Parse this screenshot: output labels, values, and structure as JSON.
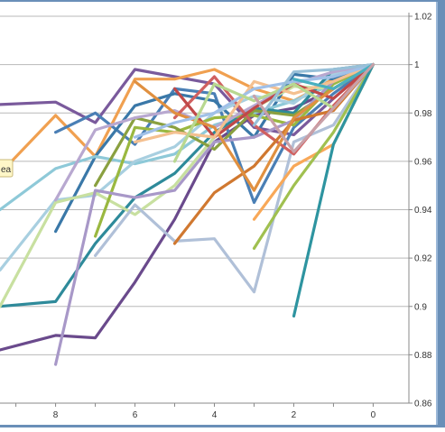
{
  "chart_data": {
    "type": "line",
    "title": "",
    "xlabel": "",
    "ylabel": "",
    "x_reversed": true,
    "xlim": [
      -0.9,
      9.4
    ],
    "ylim": [
      0.86,
      1.02
    ],
    "x_ticks": [
      8,
      6,
      4,
      2,
      0
    ],
    "x_tick_labels": [
      "8",
      "6",
      "4",
      "2",
      "0"
    ],
    "y_ticks": [
      0.86,
      0.88,
      0.9,
      0.92,
      0.94,
      0.96,
      0.98,
      1,
      1.02
    ],
    "y_tick_labels": [
      "0.86",
      "0.88",
      "0.9",
      "0.92",
      "0.94",
      "0.96",
      "0.98",
      "1",
      "1.02"
    ],
    "grid": "horizontal",
    "legend": "none",
    "tooltip_fragment": "ea",
    "series": [
      {
        "color": "#7a5a9c",
        "x": [
          9.4,
          8,
          7,
          6,
          5,
          4,
          3,
          2,
          1,
          0
        ],
        "y": [
          0.9835,
          0.9845,
          0.976,
          0.998,
          0.995,
          0.992,
          0.974,
          0.971,
          0.986,
          1.0
        ]
      },
      {
        "color": "#6a4a8c",
        "x": [
          9.4,
          8,
          7,
          6,
          5,
          4,
          3,
          2,
          1,
          0
        ],
        "y": [
          0.882,
          0.888,
          0.887,
          0.91,
          0.936,
          0.968,
          0.979,
          0.982,
          0.99,
          1.0
        ]
      },
      {
        "color": "#f0a050",
        "x": [
          9.4,
          8,
          7,
          6,
          5,
          4,
          3,
          2,
          1,
          0
        ],
        "y": [
          0.955,
          0.979,
          0.962,
          0.994,
          0.994,
          0.998,
          0.99,
          0.985,
          0.994,
          1.0
        ]
      },
      {
        "color": "#4a7fb5",
        "x": [
          8,
          7,
          6,
          5,
          4,
          3,
          2,
          1,
          0
        ],
        "y": [
          0.972,
          0.98,
          0.967,
          0.99,
          0.988,
          0.943,
          0.974,
          0.988,
          1.0
        ]
      },
      {
        "color": "#3a78a8",
        "x": [
          8,
          7,
          6,
          5,
          4,
          3,
          2,
          1,
          0
        ],
        "y": [
          0.931,
          0.962,
          0.983,
          0.988,
          0.985,
          0.97,
          0.996,
          0.994,
          1.0
        ]
      },
      {
        "color": "#8ec9d8",
        "x": [
          9.4,
          8,
          7,
          6,
          5,
          4,
          3,
          2,
          1,
          0
        ],
        "y": [
          0.94,
          0.957,
          0.962,
          0.959,
          0.963,
          0.975,
          0.98,
          0.985,
          0.992,
          1.0
        ]
      },
      {
        "color": "#a8cfe0",
        "x": [
          9.4,
          8,
          7,
          6,
          5,
          4,
          3,
          2,
          1,
          0
        ],
        "y": [
          0.915,
          0.944,
          0.946,
          0.96,
          0.966,
          0.98,
          0.987,
          0.984,
          0.996,
          1.0
        ]
      },
      {
        "color": "#2e8a9a",
        "x": [
          9.4,
          8,
          7,
          6,
          5,
          4,
          3,
          2,
          1,
          0
        ],
        "y": [
          0.9,
          0.902,
          0.926,
          0.945,
          0.955,
          0.972,
          0.982,
          0.98,
          0.998,
          1.0
        ]
      },
      {
        "color": "#c8e0a0",
        "x": [
          9.4,
          8,
          7,
          6,
          5,
          4,
          3,
          2,
          1,
          0
        ],
        "y": [
          0.9,
          0.943,
          0.947,
          0.938,
          0.95,
          0.97,
          0.982,
          0.991,
          0.99,
          1.0
        ]
      },
      {
        "color": "#9ab840",
        "x": [
          7,
          6,
          5,
          4,
          3,
          2,
          1,
          0
        ],
        "y": [
          0.929,
          0.974,
          0.972,
          0.978,
          0.979,
          0.975,
          0.992,
          1.0
        ]
      },
      {
        "color": "#8aa040",
        "x": [
          7,
          6,
          5,
          4,
          3,
          2,
          1,
          0
        ],
        "y": [
          0.95,
          0.978,
          0.974,
          0.965,
          0.981,
          0.979,
          0.99,
          1.0
        ]
      },
      {
        "color": "#a898c8",
        "x": [
          8,
          7,
          6,
          5,
          4,
          3,
          2,
          1,
          0
        ],
        "y": [
          0.876,
          0.948,
          0.945,
          0.948,
          0.968,
          0.97,
          0.977,
          0.993,
          1.0
        ]
      },
      {
        "color": "#b8a8d0",
        "x": [
          8,
          7,
          6,
          5,
          4,
          3,
          2,
          1,
          0
        ],
        "y": [
          0.944,
          0.973,
          0.978,
          0.981,
          0.974,
          0.983,
          0.992,
          0.997,
          1.0
        ]
      },
      {
        "color": "#b0c0d8",
        "x": [
          7,
          6,
          5,
          4,
          3,
          2,
          1,
          0
        ],
        "y": [
          0.921,
          0.942,
          0.927,
          0.928,
          0.906,
          0.968,
          0.975,
          1.0
        ]
      },
      {
        "color": "#d06060",
        "x": [
          5,
          4,
          3,
          2,
          1,
          0
        ],
        "y": [
          0.978,
          0.995,
          0.975,
          0.963,
          0.983,
          1.0
        ]
      },
      {
        "color": "#c04848",
        "x": [
          5,
          4,
          3,
          2,
          1,
          0
        ],
        "y": [
          0.99,
          0.97,
          0.982,
          0.992,
          0.986,
          1.0
        ]
      },
      {
        "color": "#d07830",
        "x": [
          5,
          4,
          3,
          2,
          1,
          0
        ],
        "y": [
          0.926,
          0.947,
          0.958,
          0.977,
          0.981,
          1.0
        ]
      },
      {
        "color": "#e09040",
        "x": [
          6,
          5,
          4,
          3,
          2,
          1,
          0
        ],
        "y": [
          0.993,
          0.98,
          0.974,
          0.948,
          0.978,
          0.99,
          1.0
        ]
      },
      {
        "color": "#f4c090",
        "x": [
          6,
          5,
          4,
          3,
          2,
          1,
          0
        ],
        "y": [
          0.968,
          0.972,
          0.97,
          0.993,
          0.988,
          0.993,
          1.0
        ]
      },
      {
        "color": "#a0c0e8",
        "x": [
          6,
          5,
          4,
          3,
          2,
          1,
          0
        ],
        "y": [
          0.97,
          0.976,
          0.98,
          0.99,
          0.993,
          0.995,
          1.0
        ]
      },
      {
        "color": "#b8d890",
        "x": [
          5,
          4,
          3,
          2,
          1,
          0
        ],
        "y": [
          0.96,
          0.992,
          0.985,
          0.992,
          0.982,
          1.0
        ]
      },
      {
        "color": "#f8a858",
        "x": [
          3,
          2,
          1,
          0
        ],
        "y": [
          0.936,
          0.958,
          0.967,
          1.0
        ]
      },
      {
        "color": "#a0c050",
        "x": [
          3,
          2,
          1,
          0
        ],
        "y": [
          0.924,
          0.95,
          0.972,
          1.0
        ]
      },
      {
        "color": "#98c0d8",
        "x": [
          3,
          2,
          1,
          0
        ],
        "y": [
          0.975,
          0.997,
          0.998,
          1.0
        ]
      },
      {
        "color": "#2e94a0",
        "x": [
          2,
          1,
          0
        ],
        "y": [
          0.896,
          0.967,
          1.0
        ]
      },
      {
        "color": "#48b0c0",
        "x": [
          2,
          1,
          0
        ],
        "y": [
          0.994,
          0.99,
          1.0
        ]
      },
      {
        "color": "#c8a0a8",
        "x": [
          3,
          2,
          1,
          0
        ],
        "y": [
          0.987,
          0.964,
          0.982,
          1.0
        ]
      }
    ]
  },
  "window": {
    "frame_color": "#6a8fb8",
    "frame_highlight": "#9bb8d8"
  }
}
